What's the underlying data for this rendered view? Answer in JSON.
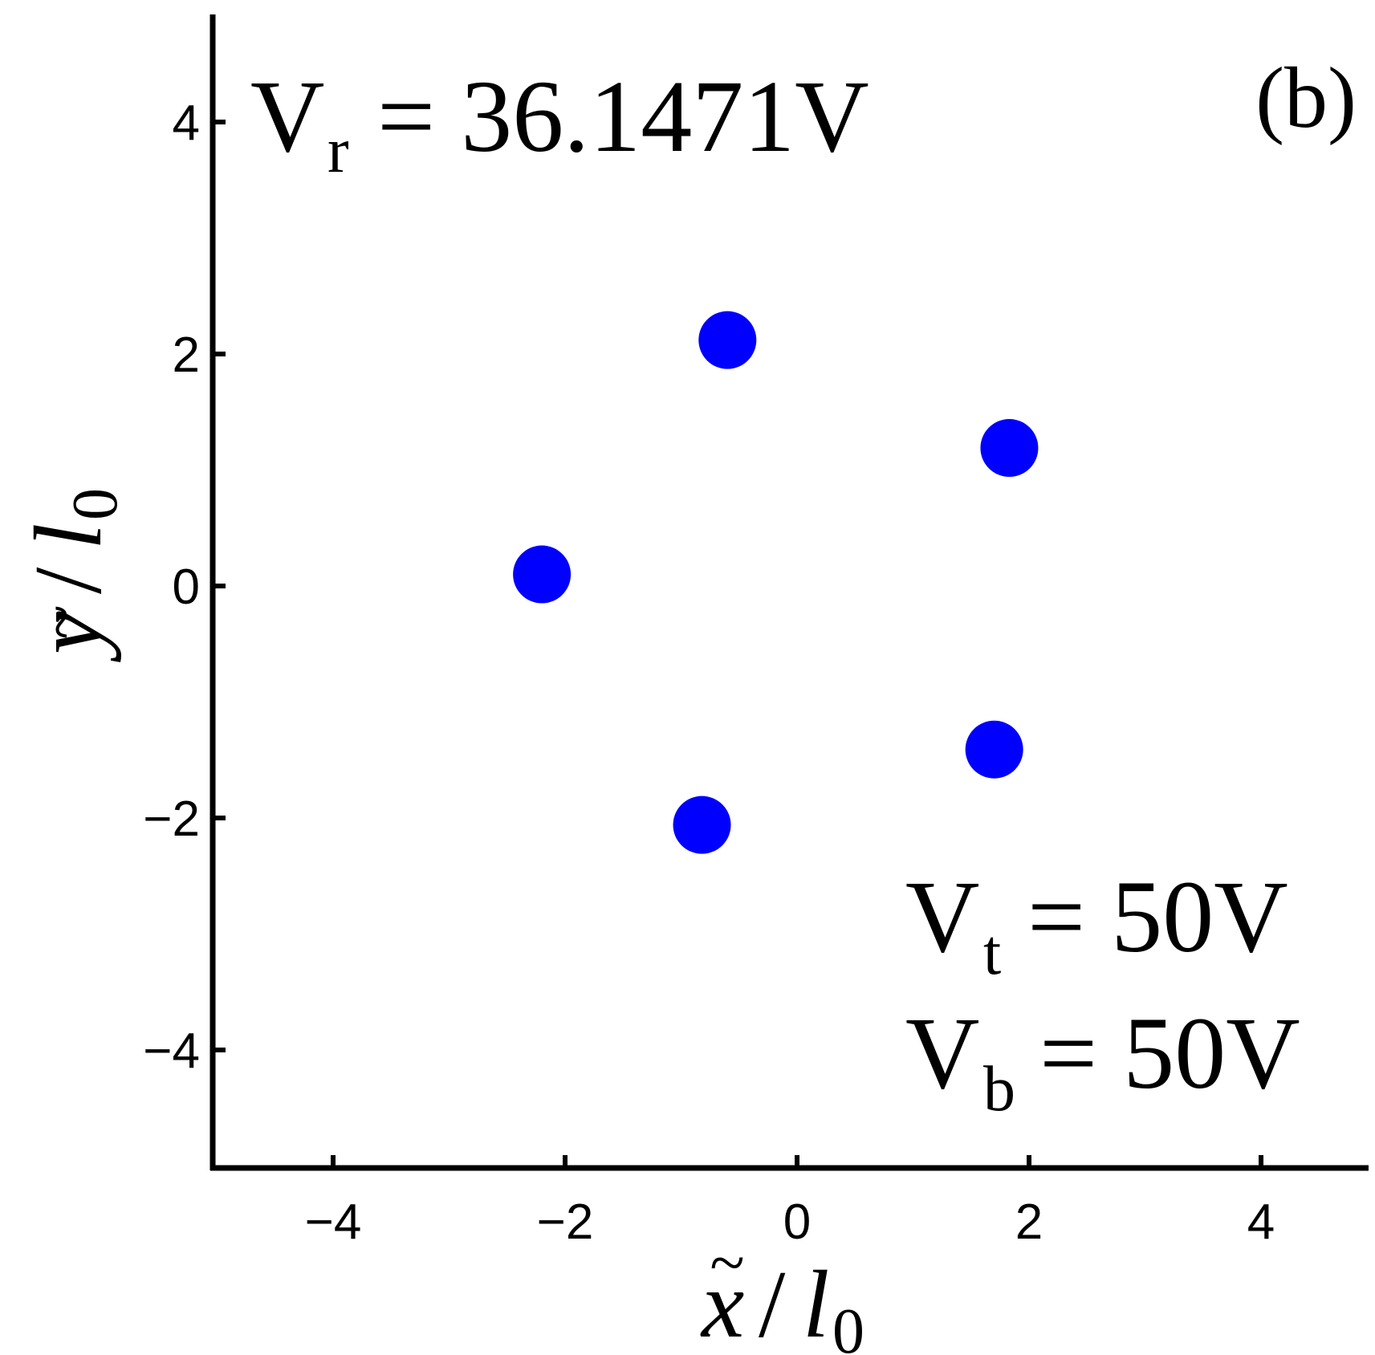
{
  "chart_data": {
    "type": "scatter",
    "panel_label": "(b)",
    "xlabel": {
      "var": "x",
      "accent": "~",
      "slash": "/",
      "base": "l",
      "sub": "0"
    },
    "ylabel": {
      "var": "y",
      "accent": "~",
      "slash": "/",
      "base": "l",
      "sub": "0"
    },
    "xlim": [
      -5,
      5
    ],
    "ylim": [
      -5,
      5
    ],
    "xticks": [
      -4,
      -2,
      0,
      2,
      4
    ],
    "yticks": [
      -4,
      -2,
      0,
      2,
      4
    ],
    "tick_labels": {
      "x": [
        "−4",
        "−2",
        "0",
        "2",
        "4"
      ],
      "y": [
        "−4",
        "−2",
        "0",
        "2",
        "4"
      ]
    },
    "grid": false,
    "marker_color": "#0000ff",
    "series": [
      {
        "x": [
          -2.2,
          -0.6,
          1.83,
          1.7,
          -0.82
        ],
        "y": [
          0.1,
          2.12,
          1.19,
          -1.41,
          -2.06
        ]
      }
    ],
    "annotations": [
      {
        "main": "V",
        "sub": "r",
        "rest": "= 36.1471V"
      },
      {
        "main": "V",
        "sub": "t",
        "rest": "= 50V"
      },
      {
        "main": "V",
        "sub": "b",
        "rest": "= 50V"
      }
    ]
  }
}
